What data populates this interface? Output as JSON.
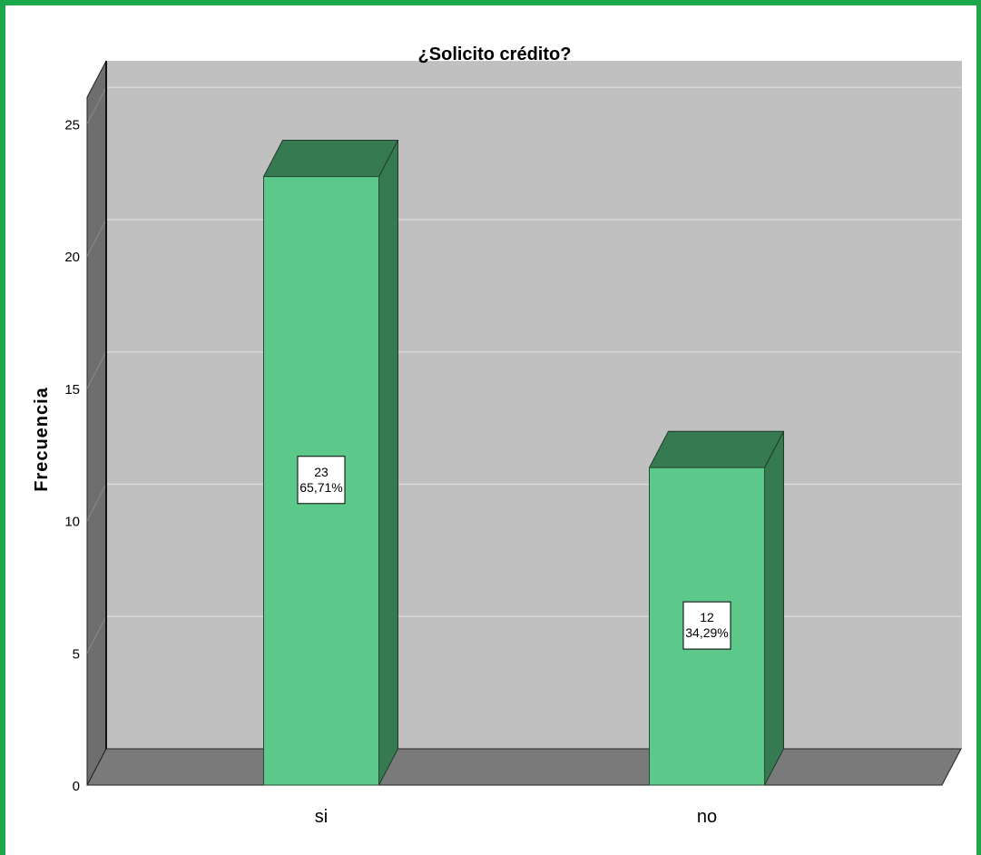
{
  "chart_data": {
    "type": "bar",
    "title": "¿Solicito crédito?",
    "xlabel": "",
    "ylabel": "Frecuencia",
    "categories": [
      "si",
      "no"
    ],
    "values": [
      23,
      12
    ],
    "percent_labels": [
      "65,71%",
      "34,29%"
    ],
    "ylim": [
      0,
      26
    ],
    "yticks": [
      0,
      5,
      10,
      15,
      20,
      25
    ],
    "grid": true,
    "style": "3d",
    "colors": {
      "bar_front": "#5cc98a",
      "bar_side": "#367a52",
      "bar_top": "#367a52",
      "plot_back": "#c0c0c0",
      "floor": "#7a7a7a",
      "wall_left": "#6e6e6e",
      "gridline": "#d8d8d8",
      "frame_border": "#1ca84a"
    }
  }
}
